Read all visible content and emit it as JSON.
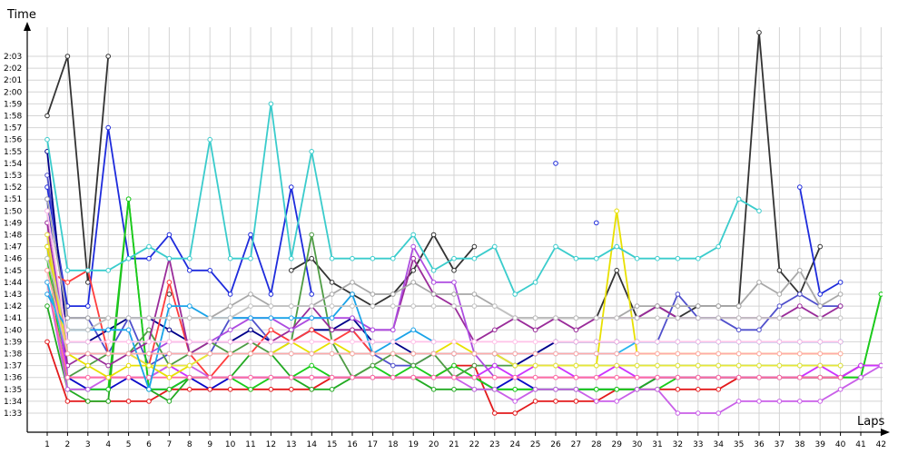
{
  "chart_data": {
    "type": "line",
    "xlabel": "Laps",
    "ylabel": "Time",
    "x": [
      1,
      2,
      3,
      4,
      5,
      6,
      7,
      8,
      9,
      10,
      11,
      12,
      13,
      14,
      15,
      16,
      17,
      18,
      19,
      20,
      21,
      22,
      23,
      24,
      25,
      26,
      27,
      28,
      29,
      30,
      31,
      32,
      33,
      34,
      35,
      36,
      37,
      38,
      39,
      40,
      41,
      42
    ],
    "x_tick_labels": [
      "1",
      "2",
      "3",
      "4",
      "5",
      "6",
      "7",
      "8",
      "9",
      "10",
      "11",
      "12",
      "13",
      "14",
      "15",
      "16",
      "17",
      "18",
      "19",
      "20",
      "21",
      "22",
      "23",
      "24",
      "25",
      "26",
      "27",
      "28",
      "29",
      "30",
      "31",
      "32",
      "33",
      "34",
      "35",
      "36",
      "37",
      "38",
      "39",
      "40",
      "41",
      "42"
    ],
    "y_tick_labels": [
      "1:33",
      "1:34",
      "1:35",
      "1:36",
      "1:37",
      "1:38",
      "1:39",
      "1:40",
      "1:41",
      "1:42",
      "1:43",
      "1:44",
      "1:45",
      "1:46",
      "1:47",
      "1:48",
      "1:49",
      "1:50",
      "1:51",
      "1:52",
      "1:53",
      "1:54",
      "1:55",
      "1:56",
      "1:57",
      "1:58",
      "1:59",
      "2:00",
      "2:01",
      "2:02",
      "2:03"
    ],
    "y_unit": "seconds",
    "ylim": [
      92,
      125
    ],
    "grid": true,
    "series": [
      {
        "color": "#333333",
        "values": [
          118,
          123,
          104,
          123,
          null,
          null,
          103,
          null,
          null,
          null,
          null,
          null,
          105,
          106,
          104,
          103,
          102,
          103,
          105,
          108,
          105,
          107,
          null,
          101,
          101,
          101,
          101,
          101,
          105,
          101,
          102,
          101,
          102,
          102,
          102,
          125,
          105,
          103,
          107,
          null,
          null,
          null
        ]
      },
      {
        "color": "#0a0ac8",
        "values": [
          111,
          96,
          95,
          95,
          96,
          95,
          95,
          96,
          95,
          96,
          96,
          96,
          96,
          96,
          96,
          96,
          96,
          96,
          96,
          96,
          96,
          96,
          95,
          96,
          95,
          95,
          95,
          95,
          95,
          95,
          96,
          96,
          96,
          96,
          96,
          96,
          96,
          96,
          96,
          96,
          97,
          97
        ]
      },
      {
        "color": "#1e2bdc",
        "values": [
          112,
          102,
          102,
          117,
          106,
          106,
          108,
          105,
          105,
          103,
          108,
          103,
          112,
          103,
          null,
          null,
          null,
          null,
          null,
          null,
          null,
          null,
          null,
          null,
          null,
          114,
          null,
          109,
          null,
          null,
          null,
          null,
          null,
          null,
          null,
          null,
          null,
          112,
          103,
          104,
          null,
          null
        ]
      },
      {
        "color": "#5050cc",
        "values": [
          113,
          101,
          101,
          98,
          101,
          97,
          98,
          98,
          98,
          101,
          101,
          99,
          99,
          100,
          100,
          100,
          98,
          97,
          97,
          98,
          98,
          98,
          98,
          97,
          98,
          99,
          99,
          99,
          99,
          99,
          99,
          103,
          101,
          101,
          100,
          100,
          102,
          103,
          102,
          102,
          null,
          null
        ]
      },
      {
        "color": "#00008a",
        "values": [
          115,
          99,
          99,
          100,
          101,
          101,
          100,
          99,
          99,
          99,
          100,
          99,
          99,
          100,
          100,
          101,
          99,
          99,
          98,
          98,
          98,
          98,
          98,
          97,
          98,
          99,
          99,
          99,
          99,
          99,
          99,
          99,
          99,
          99,
          99,
          99,
          99,
          99,
          99,
          99,
          null,
          null
        ]
      },
      {
        "color": "#e31a1c",
        "values": [
          99,
          94,
          94,
          94,
          94,
          94,
          95,
          95,
          95,
          95,
          95,
          95,
          95,
          95,
          96,
          96,
          96,
          96,
          96,
          96,
          97,
          97,
          93,
          93,
          94,
          94,
          94,
          94,
          95,
          95,
          95,
          95,
          95,
          95,
          96,
          96,
          96,
          96,
          96,
          96,
          97,
          97
        ]
      },
      {
        "color": "#ff3d3d",
        "values": [
          105,
          104,
          105,
          98,
          98,
          97,
          104,
          98,
          96,
          98,
          98,
          100,
          99,
          100,
          99,
          100,
          98,
          null,
          null,
          null,
          null,
          null,
          null,
          null,
          null,
          null,
          null,
          null,
          null,
          null,
          null,
          null,
          null,
          null,
          null,
          null,
          null,
          null,
          null,
          null,
          null,
          null
        ]
      },
      {
        "color": "#22aa22",
        "values": [
          102,
          95,
          94,
          94,
          111,
          95,
          94,
          96,
          96,
          96,
          98,
          98,
          96,
          95,
          95,
          96,
          96,
          96,
          96,
          95,
          95,
          95,
          95,
          95,
          95,
          95,
          95,
          95,
          95,
          95,
          96,
          96,
          96,
          96,
          96,
          96,
          96,
          96,
          96,
          96,
          96,
          103
        ]
      },
      {
        "color": "#1bcc1b",
        "values": [
          106,
          95,
          95,
          95,
          111,
          95,
          95,
          96,
          96,
          96,
          95,
          96,
          96,
          97,
          96,
          96,
          97,
          96,
          97,
          96,
          97,
          96,
          95,
          95,
          95,
          95,
          95,
          95,
          95,
          95,
          95,
          96,
          96,
          96,
          96,
          96,
          96,
          96,
          96,
          96,
          96,
          103
        ]
      },
      {
        "color": "#4e9c44",
        "values": [
          107,
          96,
          97,
          98,
          98,
          100,
          97,
          98,
          99,
          98,
          99,
          98,
          99,
          108,
          99,
          96,
          97,
          98,
          97,
          98,
          96,
          97,
          97,
          97,
          97,
          97,
          97,
          97,
          97,
          97,
          97,
          97,
          97,
          97,
          97,
          97,
          97,
          97,
          97,
          97,
          null,
          null
        ]
      },
      {
        "color": "#9a2c9a",
        "values": [
          109,
          97,
          98,
          97,
          98,
          99,
          106,
          98,
          99,
          99,
          99,
          99,
          100,
          102,
          100,
          100,
          100,
          100,
          106,
          103,
          102,
          99,
          100,
          101,
          100,
          101,
          100,
          101,
          101,
          101,
          102,
          101,
          101,
          101,
          101,
          101,
          101,
          102,
          101,
          102,
          null,
          null
        ]
      },
      {
        "color": "#ad4ce0",
        "values": [
          110,
          98,
          98,
          98,
          98,
          98,
          99,
          99,
          99,
          100,
          101,
          101,
          100,
          101,
          101,
          101,
          100,
          100,
          107,
          104,
          104,
          98,
          96,
          96,
          96,
          96,
          96,
          96,
          96,
          96,
          96,
          96,
          96,
          96,
          96,
          96,
          96,
          96,
          96,
          96,
          null,
          null
        ]
      },
      {
        "color": "#cc33ff",
        "values": [
          108,
          96,
          96,
          96,
          96,
          96,
          97,
          96,
          96,
          96,
          96,
          96,
          96,
          96,
          96,
          96,
          96,
          96,
          96,
          96,
          96,
          96,
          97,
          96,
          97,
          97,
          96,
          96,
          97,
          96,
          96,
          96,
          96,
          96,
          96,
          96,
          96,
          96,
          97,
          96,
          97,
          97
        ]
      },
      {
        "color": "#c95fe8",
        "values": [
          104,
          95,
          95,
          96,
          96,
          96,
          97,
          97,
          96,
          96,
          96,
          96,
          96,
          96,
          96,
          96,
          96,
          96,
          96,
          96,
          96,
          95,
          95,
          94,
          95,
          95,
          95,
          94,
          94,
          95,
          95,
          93,
          93,
          93,
          94,
          94,
          94,
          94,
          94,
          95,
          96,
          97
        ]
      },
      {
        "color": "#ff6fa0",
        "values": [
          104,
          96,
          96,
          96,
          96,
          96,
          96,
          96,
          96,
          96,
          96,
          96,
          96,
          96,
          96,
          96,
          96,
          96,
          96,
          96,
          96,
          96,
          96,
          96,
          96,
          96,
          96,
          96,
          96,
          96,
          96,
          96,
          96,
          96,
          96,
          96,
          96,
          96,
          96,
          96,
          null,
          null
        ]
      },
      {
        "color": "#e8e000",
        "values": [
          107,
          98,
          97,
          96,
          97,
          97,
          96,
          97,
          98,
          98,
          98,
          98,
          99,
          98,
          99,
          98,
          98,
          98,
          98,
          98,
          99,
          98,
          98,
          97,
          97,
          97,
          97,
          97,
          110,
          98,
          98,
          98,
          98,
          98,
          98,
          98,
          98,
          98,
          98,
          98,
          null,
          null
        ]
      },
      {
        "color": "#e6e63a",
        "values": [
          108,
          98,
          98,
          98,
          98,
          97,
          97,
          97,
          98,
          98,
          98,
          98,
          98,
          98,
          98,
          98,
          98,
          98,
          98,
          98,
          98,
          98,
          98,
          97,
          97,
          97,
          97,
          97,
          97,
          97,
          97,
          97,
          97,
          97,
          97,
          97,
          97,
          97,
          97,
          97,
          null,
          null
        ]
      },
      {
        "color": "#3acccc",
        "values": [
          116,
          105,
          105,
          105,
          106,
          107,
          106,
          106,
          116,
          106,
          106,
          119,
          106,
          115,
          106,
          106,
          106,
          106,
          108,
          105,
          106,
          106,
          107,
          103,
          104,
          107,
          106,
          106,
          107,
          106,
          106,
          106,
          106,
          107,
          111,
          110,
          null,
          null,
          null,
          null,
          null,
          null
        ]
      },
      {
        "color": "#1aa3e8",
        "values": [
          103,
          100,
          100,
          100,
          100,
          95,
          102,
          102,
          101,
          101,
          101,
          101,
          101,
          101,
          101,
          103,
          98,
          99,
          100,
          99,
          null,
          null,
          null,
          null,
          null,
          null,
          null,
          null,
          null,
          null,
          null,
          null,
          null,
          null,
          null,
          null,
          null,
          null,
          null,
          null,
          null,
          null
        ]
      },
      {
        "color": "#28b4ef",
        "values": [
          104,
          98,
          98,
          98,
          98,
          98,
          98,
          98,
          98,
          98,
          98,
          98,
          98,
          98,
          98,
          98,
          98,
          98,
          98,
          98,
          98,
          98,
          98,
          98,
          98,
          98,
          98,
          98,
          98,
          99,
          99,
          99,
          99,
          99,
          99,
          99,
          99,
          99,
          99,
          99,
          null,
          null
        ]
      },
      {
        "color": "#a8a8a8",
        "values": [
          111,
          101,
          101,
          101,
          101,
          101,
          101,
          101,
          101,
          102,
          103,
          102,
          102,
          102,
          103,
          104,
          103,
          103,
          104,
          103,
          103,
          103,
          102,
          101,
          101,
          101,
          101,
          101,
          101,
          102,
          102,
          102,
          102,
          102,
          102,
          104,
          103,
          105,
          102,
          103,
          null,
          null
        ]
      },
      {
        "color": "#c2c2c2",
        "values": [
          106,
          100,
          100,
          101,
          101,
          101,
          101,
          101,
          101,
          101,
          102,
          102,
          102,
          102,
          102,
          102,
          102,
          102,
          102,
          102,
          102,
          102,
          102,
          101,
          101,
          101,
          101,
          101,
          101,
          101,
          101,
          101,
          101,
          101,
          101,
          101,
          101,
          101,
          101,
          101,
          null,
          null
        ]
      },
      {
        "color": "#ffaaaa",
        "values": [
          105,
          98,
          98,
          98,
          98,
          98,
          98,
          98,
          98,
          98,
          98,
          98,
          98,
          98,
          98,
          98,
          98,
          98,
          98,
          98,
          98,
          98,
          98,
          98,
          98,
          98,
          98,
          98,
          98,
          98,
          98,
          98,
          98,
          98,
          98,
          98,
          98,
          98,
          98,
          98,
          null,
          null
        ]
      },
      {
        "color": "#ffc2e8",
        "values": [
          110,
          99,
          99,
          99,
          99,
          99,
          99,
          99,
          99,
          99,
          99,
          99,
          99,
          99,
          99,
          99,
          99,
          99,
          99,
          99,
          99,
          99,
          99,
          99,
          99,
          99,
          99,
          99,
          99,
          99,
          99,
          99,
          99,
          99,
          99,
          99,
          99,
          99,
          99,
          99,
          null,
          null
        ]
      }
    ]
  }
}
